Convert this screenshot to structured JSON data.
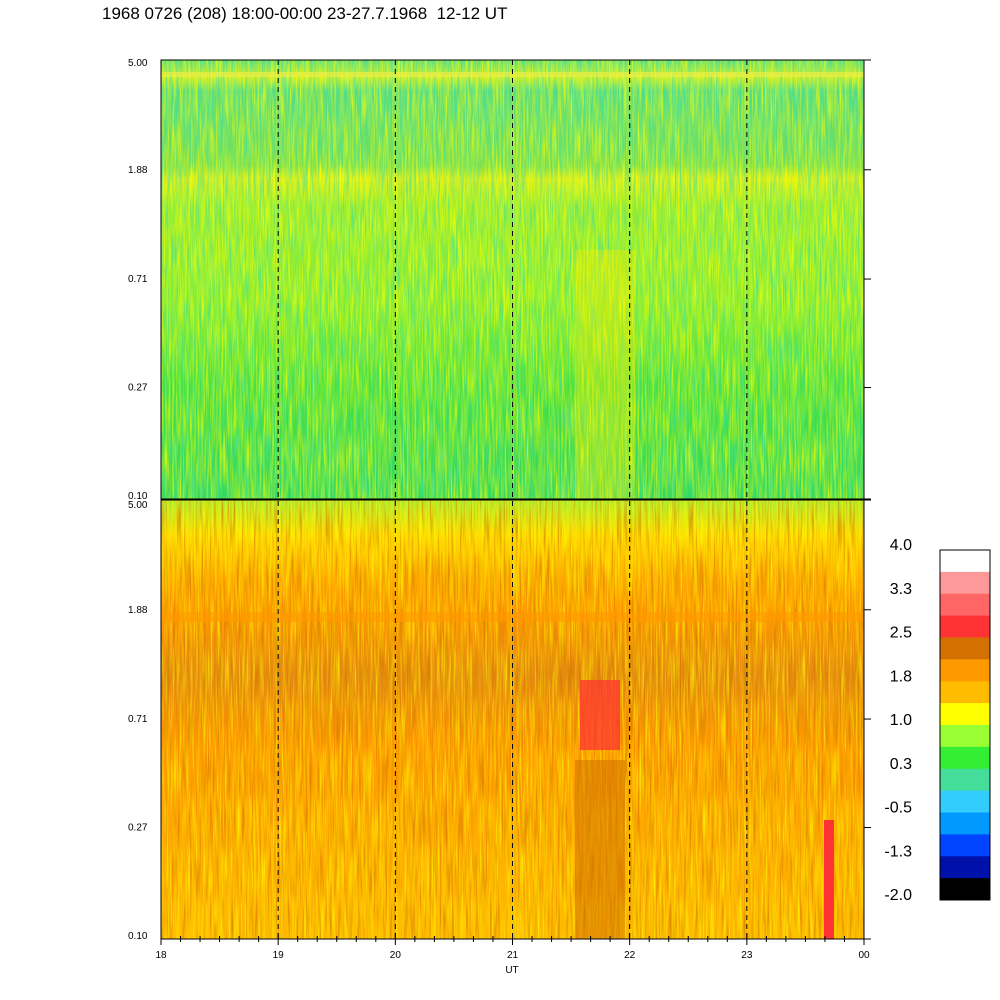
{
  "header": {
    "title": "1968 0726 (208) 18:00-00:00 23-27.7.1968  12-12 UT"
  },
  "chart_data": {
    "type": "heatmap",
    "xlabel": "UT",
    "x_ticks": [
      "18",
      "19",
      "20",
      "21",
      "22",
      "23",
      "00"
    ],
    "x_range_hours": [
      18,
      24
    ],
    "panels": [
      {
        "name": "upper",
        "y_ticks": [
          "5.00",
          "1.88",
          "0.71",
          "0.27",
          "0.10"
        ],
        "ylim": [
          0.1,
          5.0
        ],
        "yscale": "log",
        "dominant_level": "0.3 to 1.0 (green/yellow)"
      },
      {
        "name": "lower",
        "y_ticks": [
          "5.00",
          "1.88",
          "0.71",
          "0.27",
          "0.10"
        ],
        "ylim": [
          0.1,
          5.0
        ],
        "yscale": "log",
        "dominant_level": "1.0 to 2.5 (yellow/orange)"
      }
    ],
    "vertical_dashed_lines_at": [
      "19",
      "20",
      "21",
      "22",
      "23"
    ],
    "colorbar": {
      "labels": [
        "4.0",
        "3.3",
        "2.5",
        "1.8",
        "1.0",
        "0.3",
        "-0.5",
        "-1.3",
        "-2.0"
      ],
      "colors": [
        "#ffffff",
        "#ff9999",
        "#ff6666",
        "#ff3333",
        "#d27000",
        "#ff9900",
        "#ffbb00",
        "#ffff00",
        "#99ff33",
        "#33ee33",
        "#44dd99",
        "#33ccff",
        "#0099ff",
        "#0044ff",
        "#0011aa",
        "#000000"
      ]
    }
  }
}
